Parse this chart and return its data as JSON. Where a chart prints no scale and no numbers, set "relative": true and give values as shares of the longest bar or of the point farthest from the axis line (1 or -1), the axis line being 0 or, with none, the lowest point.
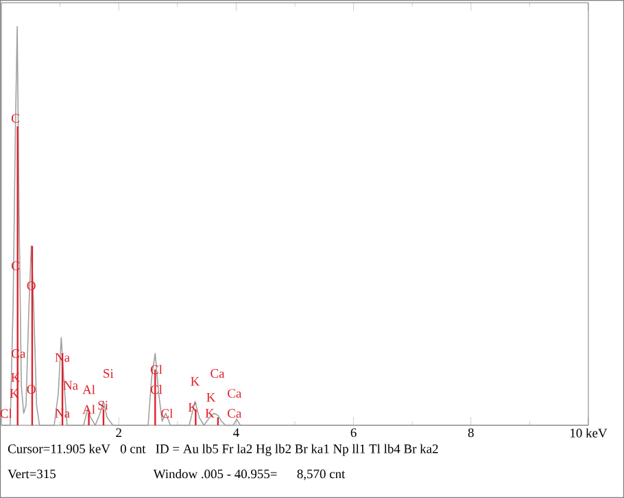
{
  "chart_data": {
    "type": "line",
    "relative": true,
    "xlim": [
      0,
      10
    ],
    "xticks": [
      {
        "value": 1,
        "label": null
      },
      2,
      {
        "value": 3,
        "label": null
      },
      4,
      {
        "value": 5,
        "label": null
      },
      6,
      {
        "value": 7,
        "label": null
      },
      8,
      {
        "value": 9,
        "label": null
      },
      {
        "value": 10,
        "label": "10 keV"
      }
    ],
    "series": [
      {
        "color": "#a0a0a0",
        "x": [
          0.0,
          0.15,
          0.2,
          0.24,
          0.27,
          0.3,
          0.34,
          0.38,
          0.42,
          0.47,
          0.51,
          0.55,
          0.6,
          0.65,
          0.9,
          0.97,
          1.02,
          1.07,
          1.12,
          1.4,
          1.47,
          1.52,
          1.6,
          1.68,
          1.74,
          1.8,
          1.9,
          2.5,
          2.56,
          2.62,
          2.68,
          2.74,
          2.8,
          2.88,
          3.2,
          3.3,
          3.37,
          3.45,
          3.55,
          3.62,
          3.69,
          3.75,
          3.82,
          3.95,
          4.01,
          4.07,
          10
        ],
        "values": [
          0,
          0,
          0.3,
          0.75,
          1.0,
          0.55,
          0.1,
          0.03,
          0.05,
          0.3,
          0.45,
          0.3,
          0.05,
          0,
          0,
          0.08,
          0.22,
          0.1,
          0,
          0,
          0.04,
          0.02,
          0,
          0.03,
          0.06,
          0.02,
          0,
          0,
          0.12,
          0.18,
          0.08,
          0.01,
          0.03,
          0,
          0,
          0.06,
          0.02,
          0,
          0.02,
          0.03,
          0.025,
          0.01,
          0,
          0,
          0.015,
          0,
          0
        ]
      },
      {
        "type": "bar",
        "color": "#e0202a",
        "x": [
          0.277,
          0.525,
          1.04,
          1.49,
          1.74,
          2.62,
          3.31,
          3.69
        ],
        "values": [
          0.75,
          0.45,
          0.18,
          0.03,
          0.04,
          0.14,
          0.04,
          0.02
        ]
      }
    ],
    "annotations": [
      {
        "text": "C",
        "x": 0.24,
        "y": 0.77
      },
      {
        "text": "C",
        "x": 0.24,
        "y": 0.4
      },
      {
        "text": "O",
        "x": 0.51,
        "y": 0.35
      },
      {
        "text": "Ca",
        "x": 0.29,
        "y": 0.18
      },
      {
        "text": "K",
        "x": 0.24,
        "y": 0.12
      },
      {
        "text": "K",
        "x": 0.22,
        "y": 0.08
      },
      {
        "text": "Cl",
        "x": 0.08,
        "y": 0.03
      },
      {
        "text": "O",
        "x": 0.51,
        "y": 0.09
      },
      {
        "text": "Na",
        "x": 1.04,
        "y": 0.17
      },
      {
        "text": "Na",
        "x": 1.18,
        "y": 0.1
      },
      {
        "text": "Na",
        "x": 1.04,
        "y": 0.03
      },
      "Al",
      {
        "text": "Al",
        "x": 1.49,
        "y": 0.04
      },
      "Si",
      {
        "text": "Si",
        "x": 1.73,
        "y": 0.05
      },
      {
        "text": "Cl",
        "x": 2.64,
        "y": 0.14
      },
      {
        "text": "Cl",
        "x": 2.64,
        "y": 0.09
      },
      {
        "text": "Cl",
        "x": 2.82,
        "y": 0.03
      },
      "K",
      "K",
      {
        "text": "K",
        "x": 3.26,
        "y": 0.045
      },
      {
        "text": "K",
        "x": 3.55,
        "y": 0.03
      },
      "Ca",
      "Ca",
      {
        "text": "Ca",
        "x": 3.97,
        "y": 0.03
      },
      "Cursor=11.905 keV   0 cnt   ID = Au lb5 Fr la2 Hg lb2 Br ka1 Np ll1 Tl lb4 Br ka2",
      "Vert=315                              Window .005 - 40.955=      8,570 cnt"
    ]
  }
}
